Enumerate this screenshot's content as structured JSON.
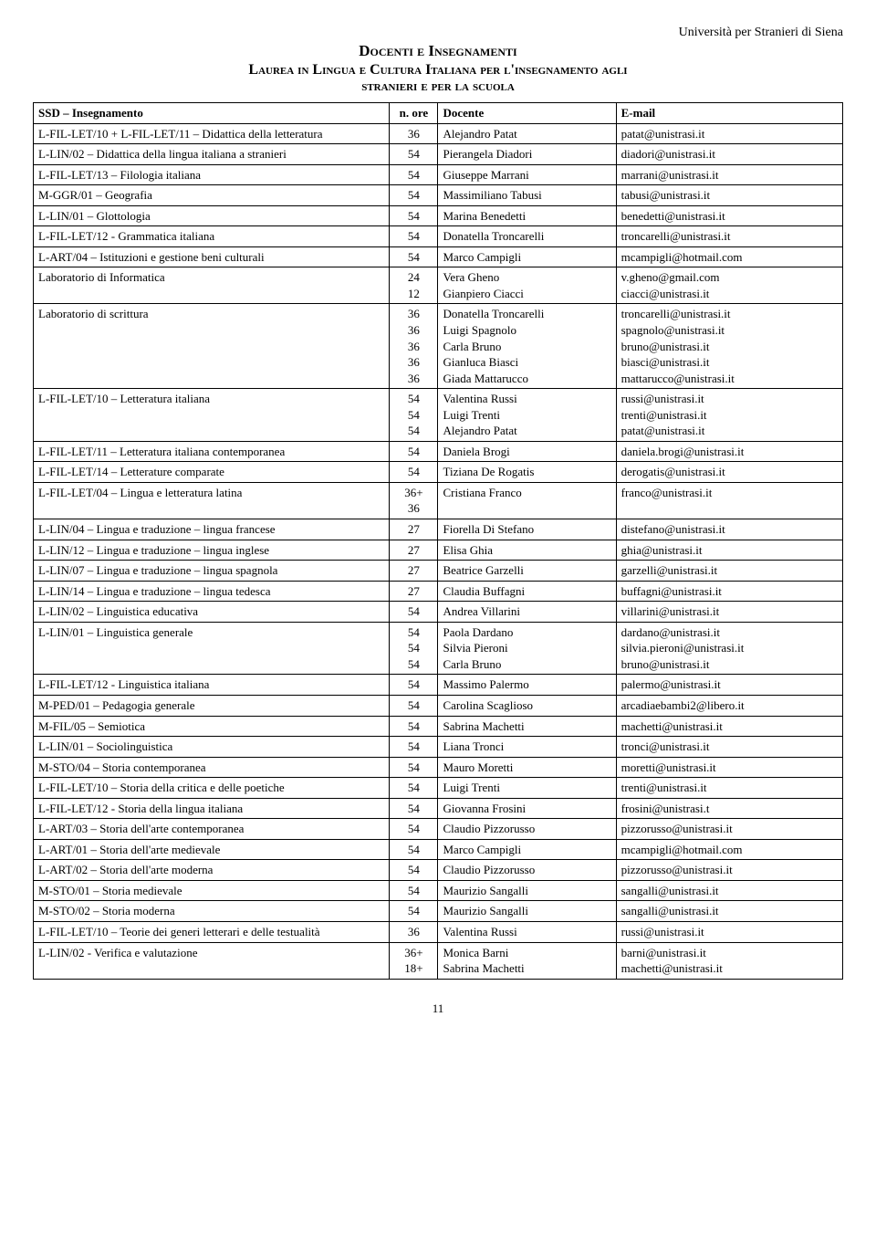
{
  "header": {
    "university": "Università per Stranieri di Siena",
    "title1": "Docenti e Insegnamenti",
    "title2": "Laurea in Lingua e Cultura Italiana per l'insegnamento agli",
    "title3": "stranieri e per la scuola"
  },
  "table": {
    "columns": {
      "c1": "SSD – Insegnamento",
      "c2": "n. ore",
      "c3": "Docente",
      "c4": "E-mail"
    },
    "rows": [
      {
        "ssd": "L-FIL-LET/10 + L-FIL-LET/11 – Didattica della letteratura",
        "ore": "36",
        "docente": "Alejandro Patat",
        "email": "patat@unistrasi.it"
      },
      {
        "ssd": "L-LIN/02 – Didattica della lingua italiana a stranieri",
        "ore": "54",
        "docente": "Pierangela Diadori",
        "email": "diadori@unistrasi.it"
      },
      {
        "ssd": "L-FIL-LET/13 – Filologia italiana",
        "ore": "54",
        "docente": "Giuseppe Marrani",
        "email": "marrani@unistrasi.it"
      },
      {
        "ssd": "M-GGR/01 – Geografia",
        "ore": "54",
        "docente": "Massimiliano Tabusi",
        "email": "tabusi@unistrasi.it"
      },
      {
        "ssd": "L-LIN/01 – Glottologia",
        "ore": "54",
        "docente": "Marina Benedetti",
        "email": "benedetti@unistrasi.it"
      },
      {
        "ssd": "L-FIL-LET/12 - Grammatica italiana",
        "ore": "54",
        "docente": "Donatella Troncarelli",
        "email": "troncarelli@unistrasi.it"
      },
      {
        "ssd": "L-ART/04 – Istituzioni e gestione beni culturali",
        "ore": "54",
        "docente": "Marco Campigli",
        "email": "mcampigli@hotmail.com"
      },
      {
        "ssd": "Laboratorio di Informatica",
        "ore": "24\n12",
        "docente": "Vera Gheno\nGianpiero Ciacci",
        "email": "v.gheno@gmail.com\nciacci@unistrasi.it"
      },
      {
        "ssd": "Laboratorio di scrittura",
        "ore": "36\n36\n36\n36\n36",
        "docente": "Donatella Troncarelli\nLuigi Spagnolo\nCarla Bruno\nGianluca Biasci\nGiada Mattarucco",
        "email": "troncarelli@unistrasi.it\nspagnolo@unistrasi.it\nbruno@unistrasi.it\nbiasci@unistrasi.it\nmattarucco@unistrasi.it"
      },
      {
        "ssd": "L-FIL-LET/10 – Letteratura italiana",
        "ore": "54\n54\n54",
        "docente": "Valentina Russi\nLuigi Trenti\nAlejandro Patat",
        "email": "russi@unistrasi.it\ntrenti@unistrasi.it\npatat@unistrasi.it"
      },
      {
        "ssd": "L-FIL-LET/11 – Letteratura italiana contemporanea",
        "ore": "54",
        "docente": "Daniela Brogi",
        "email": "daniela.brogi@unistrasi.it"
      },
      {
        "ssd": "L-FIL-LET/14 – Letterature comparate",
        "ore": "54",
        "docente": "Tiziana De Rogatis",
        "email": "derogatis@unistrasi.it"
      },
      {
        "ssd": "L-FIL-LET/04 – Lingua e letteratura latina",
        "ore": "36+\n36",
        "docente": "Cristiana Franco",
        "email": "franco@unistrasi.it"
      },
      {
        "ssd": "L-LIN/04 – Lingua e traduzione – lingua francese",
        "ore": "27",
        "docente": "Fiorella Di Stefano",
        "email": "distefano@unistrasi.it"
      },
      {
        "ssd": "L-LIN/12 – Lingua e traduzione – lingua inglese",
        "ore": "27",
        "docente": "Elisa Ghia",
        "email": "ghia@unistrasi.it"
      },
      {
        "ssd": "L-LIN/07 – Lingua e traduzione – lingua spagnola",
        "ore": "27",
        "docente": "Beatrice Garzelli",
        "email": "garzelli@unistrasi.it"
      },
      {
        "ssd": "L-LIN/14 – Lingua e traduzione – lingua tedesca",
        "ore": "27",
        "docente": "Claudia Buffagni",
        "email": "buffagni@unistrasi.it"
      },
      {
        "ssd": "L-LIN/02 – Linguistica educativa",
        "ore": "54",
        "docente": "Andrea Villarini",
        "email": "villarini@unistrasi.it"
      },
      {
        "ssd": "L-LIN/01 – Linguistica generale",
        "ore": "54\n54\n54",
        "docente": "Paola Dardano\nSilvia Pieroni\nCarla Bruno",
        "email": "dardano@unistrasi.it\nsilvia.pieroni@unistrasi.it\nbruno@unistrasi.it"
      },
      {
        "ssd": "L-FIL-LET/12 - Linguistica italiana",
        "ore": "54",
        "docente": "Massimo Palermo",
        "email": "palermo@unistrasi.it"
      },
      {
        "ssd": "M-PED/01 – Pedagogia generale",
        "ore": "54",
        "docente": "Carolina Scaglioso",
        "email": "arcadiaebambi2@libero.it"
      },
      {
        "ssd": "M-FIL/05 – Semiotica",
        "ore": "54",
        "docente": "Sabrina Machetti",
        "email": "machetti@unistrasi.it"
      },
      {
        "ssd": "L-LIN/01 – Sociolinguistica",
        "ore": "54",
        "docente": "Liana Tronci",
        "email": "tronci@unistrasi.it"
      },
      {
        "ssd": "M-STO/04 – Storia contemporanea",
        "ore": "54",
        "docente": "Mauro Moretti",
        "email": "moretti@unistrasi.it"
      },
      {
        "ssd": "L-FIL-LET/10 – Storia della critica e delle poetiche",
        "ore": "54",
        "docente": "Luigi Trenti",
        "email": "trenti@unistrasi.it"
      },
      {
        "ssd": "L-FIL-LET/12 - Storia della lingua italiana",
        "ore": "54",
        "docente": "Giovanna Frosini",
        "email": "frosini@unistrasi.t"
      },
      {
        "ssd": "L-ART/03 – Storia dell'arte contemporanea",
        "ore": "54",
        "docente": "Claudio Pizzorusso",
        "email": "pizzorusso@unistrasi.it"
      },
      {
        "ssd": "L-ART/01 – Storia dell'arte medievale",
        "ore": "54",
        "docente": "Marco Campigli",
        "email": "mcampigli@hotmail.com"
      },
      {
        "ssd": "L-ART/02 – Storia dell'arte moderna",
        "ore": "54",
        "docente": "Claudio Pizzorusso",
        "email": "pizzorusso@unistrasi.it"
      },
      {
        "ssd": "M-STO/01 – Storia medievale",
        "ore": "54",
        "docente": "Maurizio Sangalli",
        "email": "sangalli@unistrasi.it"
      },
      {
        "ssd": "M-STO/02 – Storia moderna",
        "ore": "54",
        "docente": "Maurizio Sangalli",
        "email": "sangalli@unistrasi.it"
      },
      {
        "ssd": "L-FIL-LET/10 – Teorie dei generi letterari e delle testualità",
        "ore": "36",
        "docente": "Valentina Russi",
        "email": "russi@unistrasi.it"
      },
      {
        "ssd": "L-LIN/02 - Verifica e valutazione",
        "ore": "36+\n18+",
        "docente": "Monica Barni\nSabrina Machetti",
        "email": "barni@unistrasi.it\nmachetti@unistrasi.it"
      }
    ]
  },
  "page_number": "11"
}
